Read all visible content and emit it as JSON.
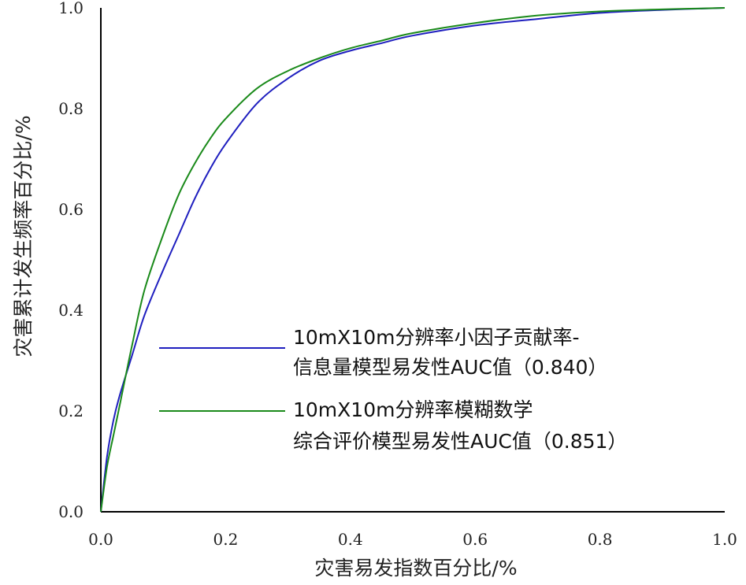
{
  "chart_data": {
    "type": "line",
    "title": "",
    "xlabel": "灾害易发指数百分比/%",
    "ylabel": "灾害累计发生频率百分比/%",
    "xlim": [
      0,
      1
    ],
    "ylim": [
      0,
      1
    ],
    "grid": false,
    "legend_position": "center-right",
    "x_ticks": [
      "0.0",
      "0.2",
      "0.4",
      "0.6",
      "0.8",
      "1.0"
    ],
    "y_ticks": [
      "0.0",
      "0.2",
      "0.4",
      "0.6",
      "0.8",
      "1.0"
    ],
    "series": [
      {
        "name": "10mX10m分辨率小因子贡献率-信息量模型易发性AUC值（0.840）",
        "label_lines": [
          "10mX10m分辨率小因子贡献率-",
          "信息量模型易发性AUC值（0.840）"
        ],
        "color": "#1f1fbf",
        "x": [
          0,
          0.01,
          0.02,
          0.03,
          0.05,
          0.07,
          0.1,
          0.125,
          0.15,
          0.175,
          0.2,
          0.25,
          0.3,
          0.35,
          0.4,
          0.45,
          0.5,
          0.6,
          0.7,
          0.8,
          0.9,
          1.0
        ],
        "y": [
          0,
          0.11,
          0.18,
          0.23,
          0.31,
          0.39,
          0.48,
          0.55,
          0.62,
          0.68,
          0.73,
          0.81,
          0.86,
          0.895,
          0.915,
          0.93,
          0.945,
          0.965,
          0.978,
          0.99,
          0.996,
          1.0
        ]
      },
      {
        "name": "10mX10m分辨率模糊数学综合评价模型易发性AUC值（0.851）",
        "label_lines": [
          "10mX10m分辨率模糊数学",
          "综合评价模型易发性AUC值（0.851）"
        ],
        "color": "#1a8a1a",
        "x": [
          0,
          0.01,
          0.02,
          0.03,
          0.05,
          0.07,
          0.1,
          0.125,
          0.15,
          0.175,
          0.2,
          0.25,
          0.3,
          0.35,
          0.4,
          0.45,
          0.5,
          0.6,
          0.7,
          0.8,
          0.9,
          1.0
        ],
        "y": [
          0,
          0.09,
          0.15,
          0.21,
          0.33,
          0.44,
          0.55,
          0.63,
          0.69,
          0.74,
          0.78,
          0.84,
          0.875,
          0.9,
          0.92,
          0.935,
          0.95,
          0.97,
          0.985,
          0.993,
          0.997,
          1.0
        ]
      }
    ]
  }
}
